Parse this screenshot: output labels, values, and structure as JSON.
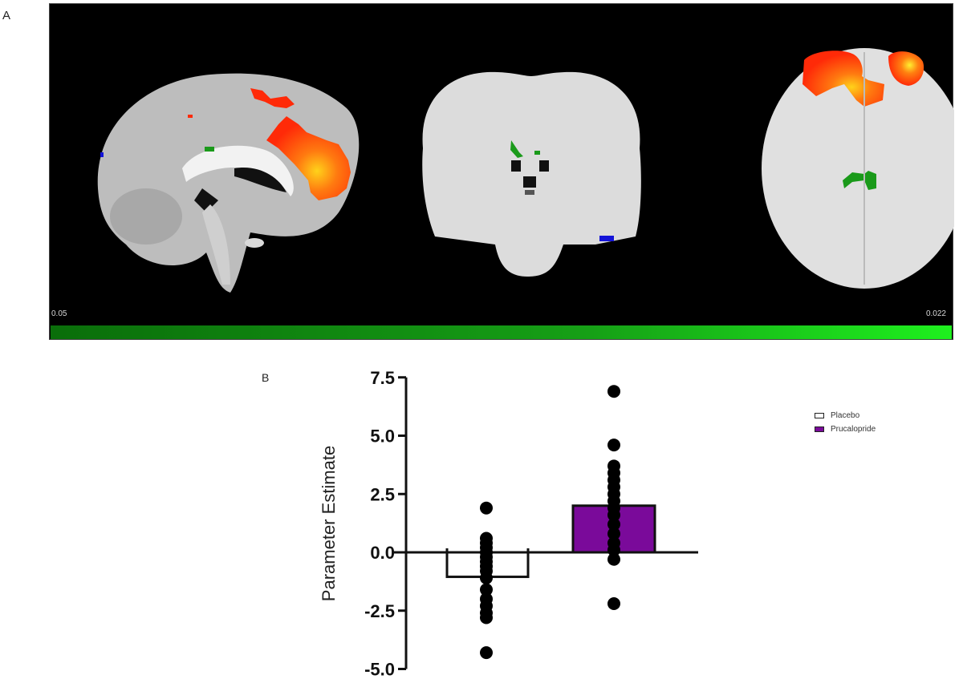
{
  "panels": {
    "a_label": "A",
    "b_label": "B"
  },
  "brain_panel": {
    "views": [
      "sagittal",
      "coronal",
      "axial"
    ],
    "scale_min": "0.05",
    "scale_max": "0.022",
    "colors": {
      "background": "#000000",
      "activation_hot": "#ff3b0a",
      "activation_peak": "#ffd21a",
      "activation_green": "#1a9a1a",
      "activation_blue": "#1414d8",
      "colorbar_start": "#0a6e0a",
      "colorbar_end": "#1ef01e"
    }
  },
  "legend": {
    "items": [
      {
        "label": "Placebo",
        "color": "#ffffff"
      },
      {
        "label": "Prucalopride",
        "color": "#7a0a9a"
      }
    ]
  },
  "chart_data": {
    "type": "bar",
    "title": "",
    "xlabel": "",
    "ylabel": "Parameter Estimate",
    "ylim": [
      -5.0,
      7.5
    ],
    "yticks": [
      "7.5",
      "5.0",
      "2.5",
      "0.0",
      "-2.5",
      "-5.0"
    ],
    "grid": false,
    "legend_position": "right",
    "categories": [
      "Placebo",
      "Prucalopride"
    ],
    "series": [
      {
        "name": "Placebo",
        "fill": "#ffffff",
        "mean": -1.05,
        "points": [
          1.9,
          0.6,
          0.4,
          0.2,
          0.0,
          -0.2,
          -0.4,
          -0.6,
          -0.8,
          -1.1,
          -1.6,
          -2.0,
          -2.3,
          -2.6,
          -2.8,
          -4.3
        ]
      },
      {
        "name": "Prucalopride",
        "fill": "#7a0a9a",
        "mean": 2.0,
        "points": [
          6.9,
          4.6,
          3.7,
          3.4,
          3.1,
          2.8,
          2.5,
          2.2,
          1.9,
          1.6,
          1.2,
          0.8,
          0.4,
          0.1,
          -0.3,
          -2.2
        ]
      }
    ]
  }
}
